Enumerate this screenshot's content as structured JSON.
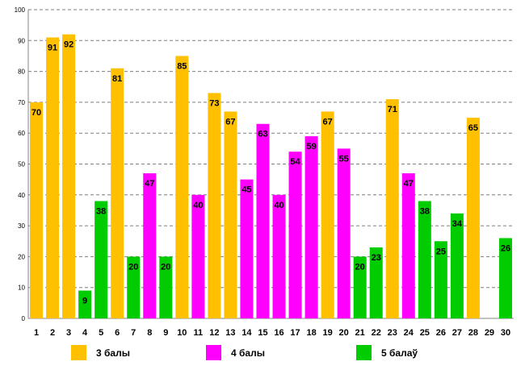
{
  "chart_data": {
    "type": "bar",
    "title": "",
    "xlabel": "",
    "ylabel": "",
    "ylim": [
      0,
      100
    ],
    "yticks": [
      0,
      10,
      20,
      30,
      40,
      50,
      60,
      70,
      80,
      90,
      100
    ],
    "grid": true,
    "categories": [
      "1",
      "2",
      "3",
      "4",
      "5",
      "6",
      "7",
      "8",
      "9",
      "10",
      "11",
      "12",
      "13",
      "14",
      "15",
      "16",
      "17",
      "18",
      "19",
      "20",
      "21",
      "22",
      "23",
      "24",
      "25",
      "26",
      "27",
      "28",
      "29",
      "30"
    ],
    "values": [
      70,
      91,
      92,
      9,
      38,
      81,
      20,
      47,
      20,
      85,
      40,
      73,
      67,
      45,
      63,
      40,
      54,
      59,
      67,
      55,
      20,
      23,
      71,
      47,
      38,
      25,
      34,
      65,
      null,
      26
    ],
    "groups": [
      "3",
      "3",
      "3",
      "5",
      "5",
      "3",
      "5",
      "4",
      "5",
      "3",
      "4",
      "3",
      "3",
      "4",
      "4",
      "4",
      "4",
      "4",
      "3",
      "4",
      "5",
      "5",
      "3",
      "4",
      "5",
      "5",
      "5",
      "3",
      null,
      "5"
    ],
    "legend": [
      {
        "key": "3",
        "label": "3 балы",
        "color": "#FFC000"
      },
      {
        "key": "4",
        "label": "4 балы",
        "color": "#FF00FF"
      },
      {
        "key": "5",
        "label": "5 балаў",
        "color": "#00CC00"
      }
    ]
  }
}
